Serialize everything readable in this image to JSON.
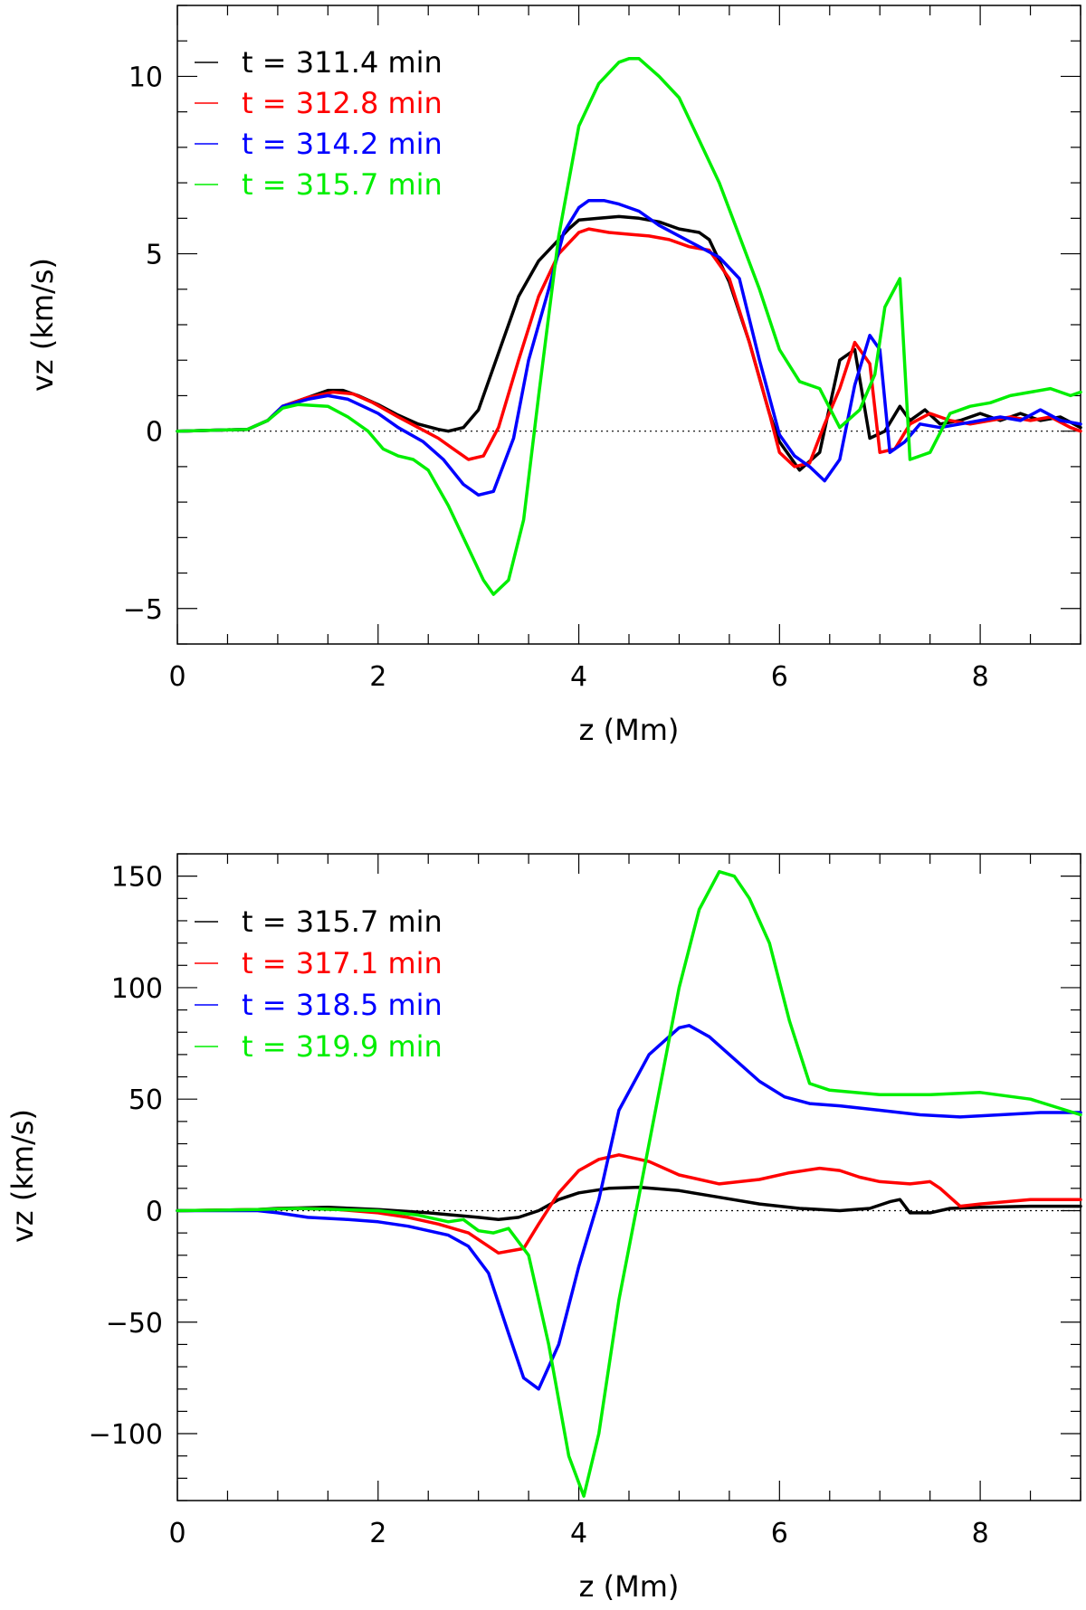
{
  "chart_data": [
    {
      "type": "line",
      "xlabel": "z (Mm)",
      "ylabel": "vz (km/s)",
      "xlim": [
        0,
        9
      ],
      "ylim": [
        -6,
        12
      ],
      "xticks": [
        {
          "value": 0,
          "label": "0"
        },
        {
          "value": 2,
          "label": "2"
        },
        {
          "value": 4,
          "label": "4"
        },
        {
          "value": 6,
          "label": "6"
        },
        {
          "value": 8,
          "label": "8"
        }
      ],
      "yticks": [
        {
          "value": -5,
          "label": "−5"
        },
        {
          "value": 0,
          "label": "0"
        },
        {
          "value": 5,
          "label": "5"
        },
        {
          "value": 10,
          "label": "10"
        }
      ],
      "x_minor_step": 0.5,
      "y_minor_step": 1,
      "zero_line": true,
      "legend_position": "top-left",
      "series": [
        {
          "name": "t = 311.4 min",
          "color": "#000000",
          "x": [
            0,
            0.7,
            0.9,
            1.05,
            1.3,
            1.5,
            1.65,
            1.8,
            2.0,
            2.2,
            2.4,
            2.6,
            2.7,
            2.85,
            3.0,
            3.2,
            3.4,
            3.6,
            3.8,
            3.9,
            4.0,
            4.2,
            4.4,
            4.6,
            4.8,
            5.0,
            5.2,
            5.3,
            5.5,
            5.7,
            5.9,
            6.0,
            6.2,
            6.4,
            6.6,
            6.75,
            6.9,
            7.05,
            7.2,
            7.3,
            7.45,
            7.6,
            7.8,
            8.0,
            8.2,
            8.4,
            8.6,
            8.8,
            9.0
          ],
          "values": [
            0,
            0.05,
            0.3,
            0.7,
            0.95,
            1.15,
            1.15,
            1.0,
            0.75,
            0.45,
            0.2,
            0.05,
            0.0,
            0.1,
            0.6,
            2.2,
            3.8,
            4.8,
            5.4,
            5.7,
            5.95,
            6.0,
            6.05,
            6.0,
            5.9,
            5.7,
            5.6,
            5.4,
            4.2,
            2.5,
            0.5,
            -0.3,
            -1.1,
            -0.6,
            2.0,
            2.3,
            -0.2,
            0.0,
            0.7,
            0.3,
            0.6,
            0.2,
            0.3,
            0.5,
            0.3,
            0.5,
            0.3,
            0.4,
            0.1
          ]
        },
        {
          "name": "t = 312.8 min",
          "color": "#ff0000",
          "x": [
            0,
            0.7,
            0.9,
            1.05,
            1.3,
            1.55,
            1.75,
            1.95,
            2.2,
            2.4,
            2.6,
            2.75,
            2.9,
            3.05,
            3.2,
            3.4,
            3.6,
            3.8,
            4.0,
            4.1,
            4.3,
            4.5,
            4.7,
            4.9,
            5.1,
            5.3,
            5.5,
            5.7,
            5.9,
            6.0,
            6.15,
            6.3,
            6.45,
            6.6,
            6.75,
            6.9,
            7.0,
            7.15,
            7.3,
            7.5,
            7.7,
            7.9,
            8.1,
            8.3,
            8.5,
            8.7,
            8.9,
            9.0
          ],
          "values": [
            0,
            0.05,
            0.3,
            0.7,
            0.95,
            1.1,
            1.05,
            0.8,
            0.4,
            0.1,
            -0.2,
            -0.5,
            -0.8,
            -0.7,
            0.1,
            2.0,
            3.8,
            5.0,
            5.6,
            5.7,
            5.6,
            5.55,
            5.5,
            5.4,
            5.2,
            5.1,
            4.3,
            2.5,
            0.5,
            -0.6,
            -1.0,
            -0.9,
            0.2,
            1.2,
            2.5,
            1.9,
            -0.6,
            -0.5,
            0.2,
            0.5,
            0.3,
            0.2,
            0.3,
            0.4,
            0.3,
            0.4,
            0.1,
            0.0
          ]
        },
        {
          "name": "t = 314.2 min",
          "color": "#0000ff",
          "x": [
            0,
            0.7,
            0.9,
            1.05,
            1.3,
            1.5,
            1.7,
            1.85,
            2.0,
            2.2,
            2.45,
            2.65,
            2.85,
            3.0,
            3.15,
            3.35,
            3.5,
            3.7,
            3.85,
            4.0,
            4.1,
            4.25,
            4.4,
            4.6,
            4.8,
            5.0,
            5.2,
            5.4,
            5.6,
            5.8,
            6.0,
            6.15,
            6.3,
            6.45,
            6.6,
            6.75,
            6.9,
            7.0,
            7.1,
            7.25,
            7.4,
            7.6,
            7.8,
            8.0,
            8.2,
            8.4,
            8.6,
            8.8,
            9.0
          ],
          "values": [
            0,
            0.05,
            0.3,
            0.7,
            0.9,
            1.0,
            0.9,
            0.7,
            0.5,
            0.1,
            -0.3,
            -0.8,
            -1.5,
            -1.8,
            -1.7,
            -0.2,
            2.0,
            4.0,
            5.6,
            6.3,
            6.5,
            6.5,
            6.4,
            6.2,
            5.8,
            5.5,
            5.2,
            4.9,
            4.3,
            2.0,
            -0.1,
            -0.7,
            -1.0,
            -1.4,
            -0.8,
            1.3,
            2.7,
            2.3,
            -0.6,
            -0.3,
            0.2,
            0.1,
            0.2,
            0.3,
            0.4,
            0.3,
            0.6,
            0.3,
            0.2
          ]
        },
        {
          "name": "t = 315.7 min",
          "color": "#00ee00",
          "x": [
            0,
            0.7,
            0.9,
            1.05,
            1.2,
            1.5,
            1.7,
            1.9,
            2.05,
            2.2,
            2.35,
            2.5,
            2.7,
            2.9,
            3.05,
            3.15,
            3.3,
            3.45,
            3.6,
            3.8,
            4.0,
            4.2,
            4.4,
            4.5,
            4.6,
            4.8,
            5.0,
            5.2,
            5.4,
            5.6,
            5.8,
            6.0,
            6.2,
            6.4,
            6.6,
            6.8,
            6.95,
            7.05,
            7.2,
            7.3,
            7.5,
            7.7,
            7.9,
            8.1,
            8.3,
            8.5,
            8.7,
            8.9,
            9.0
          ],
          "values": [
            0,
            0.05,
            0.3,
            0.65,
            0.75,
            0.7,
            0.4,
            0.0,
            -0.5,
            -0.7,
            -0.8,
            -1.1,
            -2.1,
            -3.3,
            -4.2,
            -4.6,
            -4.2,
            -2.5,
            1.0,
            5.5,
            8.6,
            9.8,
            10.4,
            10.5,
            10.5,
            10.0,
            9.4,
            8.2,
            7.0,
            5.5,
            4.0,
            2.3,
            1.4,
            1.2,
            0.1,
            0.6,
            1.6,
            3.5,
            4.3,
            -0.8,
            -0.6,
            0.5,
            0.7,
            0.8,
            1.0,
            1.1,
            1.2,
            1.0,
            1.1
          ]
        }
      ]
    },
    {
      "type": "line",
      "xlabel": "z (Mm)",
      "ylabel": "vz (km/s)",
      "xlim": [
        0,
        9
      ],
      "ylim": [
        -130,
        160
      ],
      "xticks": [
        {
          "value": 0,
          "label": "0"
        },
        {
          "value": 2,
          "label": "2"
        },
        {
          "value": 4,
          "label": "4"
        },
        {
          "value": 6,
          "label": "6"
        },
        {
          "value": 8,
          "label": "8"
        }
      ],
      "yticks": [
        {
          "value": -100,
          "label": "−100"
        },
        {
          "value": -50,
          "label": "−50"
        },
        {
          "value": 0,
          "label": "0"
        },
        {
          "value": 50,
          "label": "50"
        },
        {
          "value": 100,
          "label": "100"
        },
        {
          "value": 150,
          "label": "150"
        }
      ],
      "x_minor_step": 0.5,
      "y_minor_step": 10,
      "zero_line": true,
      "legend_position": "top-left",
      "series": [
        {
          "name": "t = 315.7 min",
          "color": "#000000",
          "x": [
            0,
            0.8,
            1.0,
            1.5,
            2.0,
            2.5,
            3.0,
            3.2,
            3.4,
            3.6,
            3.8,
            4.0,
            4.3,
            4.6,
            5.0,
            5.4,
            5.8,
            6.2,
            6.6,
            6.9,
            7.1,
            7.2,
            7.3,
            7.5,
            7.7,
            8.0,
            8.5,
            9.0
          ],
          "values": [
            0,
            0.5,
            1,
            1.5,
            0.5,
            -1,
            -3,
            -4,
            -3,
            0,
            5,
            8,
            10,
            10.5,
            9,
            6,
            3,
            1,
            0,
            1,
            4,
            5,
            -1,
            -1,
            1,
            1.5,
            2,
            2
          ]
        },
        {
          "name": "t = 317.1 min",
          "color": "#ff0000",
          "x": [
            0,
            0.8,
            1.2,
            1.6,
            2.0,
            2.3,
            2.6,
            2.9,
            3.1,
            3.2,
            3.45,
            3.6,
            3.8,
            4.0,
            4.2,
            4.4,
            4.7,
            5.0,
            5.4,
            5.8,
            6.1,
            6.4,
            6.6,
            6.8,
            7.0,
            7.3,
            7.5,
            7.6,
            7.8,
            8.0,
            8.5,
            9.0
          ],
          "values": [
            0,
            0.5,
            1,
            0.5,
            -1,
            -3,
            -6,
            -10,
            -16,
            -19,
            -17,
            -6,
            8,
            18,
            23,
            25,
            22,
            16,
            12,
            14,
            17,
            19,
            18,
            15,
            13,
            12,
            13,
            10,
            2,
            3,
            5,
            5
          ]
        },
        {
          "name": "t = 318.5 min",
          "color": "#0000ff",
          "x": [
            0,
            0.8,
            1.0,
            1.3,
            1.7,
            2.0,
            2.3,
            2.7,
            2.9,
            3.1,
            3.3,
            3.45,
            3.6,
            3.8,
            4.0,
            4.2,
            4.4,
            4.7,
            5.0,
            5.1,
            5.3,
            5.5,
            5.8,
            6.05,
            6.3,
            6.6,
            7.0,
            7.4,
            7.8,
            8.2,
            8.6,
            9.0
          ],
          "values": [
            0,
            0,
            -1,
            -3,
            -4,
            -5,
            -7,
            -11,
            -16,
            -28,
            -55,
            -75,
            -80,
            -60,
            -25,
            5,
            45,
            70,
            82,
            83,
            78,
            70,
            58,
            51,
            48,
            47,
            45,
            43,
            42,
            43,
            44,
            44
          ]
        },
        {
          "name": "t = 319.9 min",
          "color": "#00ee00",
          "x": [
            0,
            0.8,
            1.2,
            1.6,
            2.0,
            2.4,
            2.7,
            2.85,
            3.0,
            3.15,
            3.3,
            3.5,
            3.7,
            3.9,
            4.05,
            4.2,
            4.4,
            4.7,
            5.0,
            5.2,
            5.4,
            5.55,
            5.7,
            5.9,
            6.1,
            6.3,
            6.5,
            7.0,
            7.5,
            8.0,
            8.5,
            9.0
          ],
          "values": [
            0,
            0.5,
            1,
            0.5,
            0,
            -2,
            -5,
            -4,
            -9,
            -10,
            -8,
            -20,
            -60,
            -110,
            -128,
            -100,
            -40,
            30,
            100,
            135,
            152,
            150,
            140,
            120,
            85,
            57,
            54,
            52,
            52,
            53,
            50,
            43
          ]
        }
      ]
    }
  ]
}
